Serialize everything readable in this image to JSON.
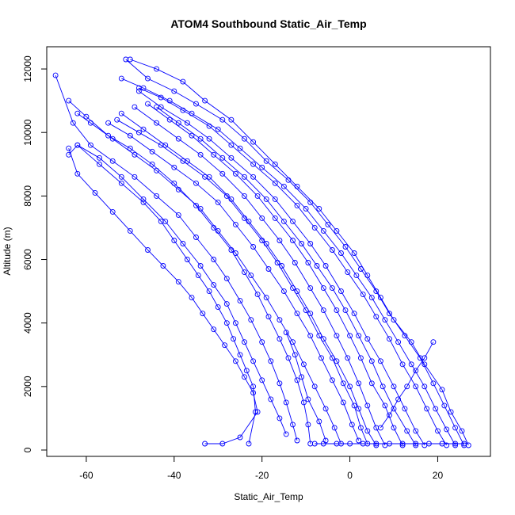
{
  "chart_data": {
    "type": "line",
    "title": "ATOM4 Southbound Static_Air_Temp",
    "xlabel": "Static_Air_Temp",
    "ylabel": "Altitude (m)",
    "xlim": [
      -69,
      32
    ],
    "ylim": [
      -200,
      12700
    ],
    "xticks": [
      -60,
      -40,
      -20,
      0,
      20
    ],
    "yticks": [
      0,
      2000,
      4000,
      6000,
      8000,
      10000,
      12000
    ],
    "marker": "open-circle",
    "grid": false,
    "color": "#0000ff",
    "series": [
      {
        "x": [
          27,
          25.5,
          23,
          21,
          17,
          14,
          10,
          7,
          4,
          1,
          -3,
          -7,
          -12,
          -17,
          -22,
          -27,
          -33,
          -38,
          -44,
          -50
        ],
        "y": [
          150,
          600,
          1200,
          1900,
          2700,
          3400,
          4100,
          4800,
          5500,
          6200,
          6900,
          7600,
          8300,
          9000,
          9700,
          10400,
          11000,
          11600,
          12000,
          12300
        ]
      },
      {
        "x": [
          26,
          24,
          21.5,
          19,
          16,
          12.5,
          9,
          6,
          2.5,
          -1,
          -5,
          -9,
          -14,
          -19,
          -24,
          -29,
          -35,
          -40,
          -46,
          -51
        ],
        "y": [
          150,
          700,
          1400,
          2100,
          2900,
          3600,
          4300,
          5000,
          5700,
          6400,
          7100,
          7800,
          8500,
          9100,
          9800,
          10400,
          10900,
          11300,
          11700,
          12300
        ]
      },
      {
        "x": [
          24,
          22,
          19.5,
          17,
          14,
          11,
          8,
          5,
          1.5,
          -2,
          -6,
          -10,
          -15,
          -20,
          -25,
          -30,
          -36,
          -41,
          -47,
          -52
        ],
        "y": [
          150,
          650,
          1300,
          2000,
          2700,
          3400,
          4100,
          4800,
          5500,
          6200,
          6900,
          7600,
          8300,
          8900,
          9500,
          10100,
          10600,
          11000,
          11400,
          11700
        ]
      },
      {
        "x": [
          22,
          20,
          17.5,
          15,
          12,
          9,
          6,
          3,
          -0.5,
          -4,
          -8,
          -12,
          -17,
          -22,
          -27,
          -32,
          -38,
          -43,
          -48
        ],
        "y": [
          150,
          600,
          1300,
          2000,
          2700,
          3500,
          4200,
          4900,
          5600,
          6300,
          7000,
          7700,
          8400,
          9000,
          9600,
          10200,
          10700,
          11100,
          11400
        ]
      },
      {
        "x": [
          17,
          15,
          12.5,
          10,
          7,
          4,
          1,
          -2,
          -5.5,
          -9,
          -13,
          -17,
          -22,
          -27,
          -32,
          -37,
          -43,
          -48
        ],
        "y": [
          150,
          600,
          1300,
          2000,
          2800,
          3500,
          4300,
          5000,
          5800,
          6500,
          7200,
          7900,
          8600,
          9200,
          9800,
          10300,
          10800,
          11300
        ]
      },
      {
        "x": [
          15,
          13,
          10,
          7.5,
          5,
          2,
          -1,
          -4,
          -7.5,
          -11,
          -15,
          -19,
          -24,
          -29,
          -34,
          -39,
          -44
        ],
        "y": [
          150,
          600,
          1300,
          2000,
          2800,
          3600,
          4400,
          5100,
          5800,
          6500,
          7200,
          7900,
          8600,
          9200,
          9800,
          10300,
          10800
        ]
      },
      {
        "x": [
          12,
          10,
          8,
          5,
          2.5,
          0,
          -3,
          -6,
          -9.5,
          -13,
          -17,
          -21,
          -26,
          -31,
          -36,
          -41,
          -46
        ],
        "y": [
          150,
          700,
          1400,
          2100,
          2900,
          3600,
          4400,
          5100,
          5900,
          6600,
          7300,
          8000,
          8700,
          9300,
          9900,
          10400,
          10900
        ]
      },
      {
        "x": [
          8,
          6,
          4,
          2,
          -0.5,
          -3,
          -6,
          -9,
          -12.5,
          -16,
          -20,
          -24,
          -29,
          -34,
          -39,
          -44,
          -49
        ],
        "y": [
          150,
          700,
          1400,
          2100,
          2900,
          3600,
          4400,
          5100,
          5900,
          6600,
          7300,
          8000,
          8700,
          9300,
          9800,
          10300,
          10800
        ]
      },
      {
        "x": [
          6,
          4,
          2,
          0,
          -3,
          -6,
          -9,
          -12,
          -15.5,
          -19,
          -23,
          -27,
          -32,
          -37,
          -42,
          -47,
          -52
        ],
        "y": [
          150,
          600,
          1300,
          2000,
          2800,
          3500,
          4300,
          5000,
          5800,
          6500,
          7200,
          7900,
          8600,
          9100,
          9600,
          10100,
          10600
        ]
      },
      {
        "x": [
          4,
          2.5,
          1,
          -1.5,
          -4,
          -7,
          -10,
          -13,
          -16.5,
          -20,
          -24,
          -28,
          -33,
          -38,
          -43,
          -48,
          -53
        ],
        "y": [
          200,
          700,
          1400,
          2100,
          2900,
          3600,
          4400,
          5100,
          5900,
          6600,
          7300,
          8000,
          8600,
          9100,
          9600,
          10000,
          10400
        ]
      },
      {
        "x": [
          2,
          0.5,
          -1.5,
          -4,
          -6.5,
          -9,
          -12,
          -15,
          -18.5,
          -22,
          -26,
          -30,
          -35,
          -40,
          -45,
          -50,
          -55
        ],
        "y": [
          300,
          800,
          1500,
          2200,
          2900,
          3600,
          4300,
          5000,
          5700,
          6400,
          7100,
          7800,
          8400,
          8900,
          9400,
          9900,
          10300
        ]
      },
      {
        "x": [
          -2,
          -3.5,
          -5.5,
          -8,
          -10.5,
          -13,
          -16,
          -19,
          -22.5,
          -26,
          -30,
          -34,
          -39,
          -44,
          -49,
          -54,
          -59,
          -62
        ],
        "y": [
          200,
          700,
          1300,
          2000,
          2700,
          3400,
          4100,
          4800,
          5500,
          6200,
          6900,
          7600,
          8200,
          8800,
          9300,
          9800,
          10300,
          10600
        ]
      },
      {
        "x": [
          -9,
          -9.5,
          -10.5,
          -12,
          -14,
          -16,
          -18.5,
          -21,
          -24,
          -27,
          -31,
          -35,
          -40,
          -45,
          -50,
          -55,
          -60,
          -64
        ],
        "y": [
          200,
          800,
          1500,
          2200,
          2900,
          3500,
          4200,
          4900,
          5600,
          6300,
          7000,
          7700,
          8400,
          9000,
          9500,
          9900,
          10500,
          11000
        ]
      },
      {
        "x": [
          -12,
          -13,
          -14.5,
          -16,
          -18,
          -20,
          -22.5,
          -25,
          -28,
          -31,
          -35,
          -39,
          -44,
          -49,
          -54,
          -59,
          -63,
          -67
        ],
        "y": [
          300,
          800,
          1500,
          2100,
          2800,
          3400,
          4100,
          4700,
          5400,
          6000,
          6700,
          7400,
          8000,
          8600,
          9100,
          9600,
          10300,
          11800
        ]
      },
      {
        "x": [
          -14.5,
          -16,
          -18,
          -20,
          -22,
          -24,
          -26,
          -28,
          -31,
          -34,
          -38,
          -42,
          -47,
          -52,
          -57,
          -62
        ],
        "y": [
          500,
          1000,
          1600,
          2200,
          2800,
          3400,
          4000,
          4600,
          5200,
          5800,
          6500,
          7200,
          7900,
          8600,
          9200,
          9600
        ]
      },
      {
        "x": [
          -23,
          -21.5,
          -22,
          -23.5,
          -25,
          -26.5,
          -28,
          -30,
          -32,
          -34.5,
          -37,
          -40,
          -43,
          -47,
          -52,
          -57,
          -62,
          -64
        ],
        "y": [
          200,
          1200,
          2000,
          2500,
          3000,
          3500,
          4000,
          4500,
          5000,
          5500,
          6000,
          6600,
          7200,
          7800,
          8400,
          9000,
          9600,
          9300
        ]
      },
      {
        "x": [
          -33,
          -29,
          -25,
          -21,
          -22,
          -24,
          -26,
          -28.5,
          -31,
          -33.5,
          -36,
          -39,
          -42.5,
          -46,
          -50,
          -54,
          -58,
          -62,
          -64
        ],
        "y": [
          200,
          200,
          400,
          1200,
          1800,
          2300,
          2800,
          3300,
          3800,
          4300,
          4800,
          5300,
          5800,
          6300,
          6900,
          7500,
          8100,
          8700,
          9500
        ]
      },
      {
        "x": [
          -8,
          -6,
          -3,
          0,
          3,
          6,
          9,
          12,
          15,
          18,
          21,
          24,
          26
        ],
        "y": [
          200,
          200,
          200,
          200,
          200,
          200,
          200,
          200,
          200,
          200,
          200,
          200,
          200
        ]
      },
      {
        "x": [
          -5.5,
          -7,
          -9.5,
          -11,
          -12.5,
          -14.5
        ],
        "y": [
          300,
          900,
          1600,
          2300,
          3000,
          3700
        ]
      },
      {
        "x": [
          7,
          9,
          11,
          13,
          15,
          17,
          19
        ],
        "y": [
          700,
          1100,
          1600,
          2000,
          2500,
          2900,
          3400
        ]
      }
    ]
  }
}
